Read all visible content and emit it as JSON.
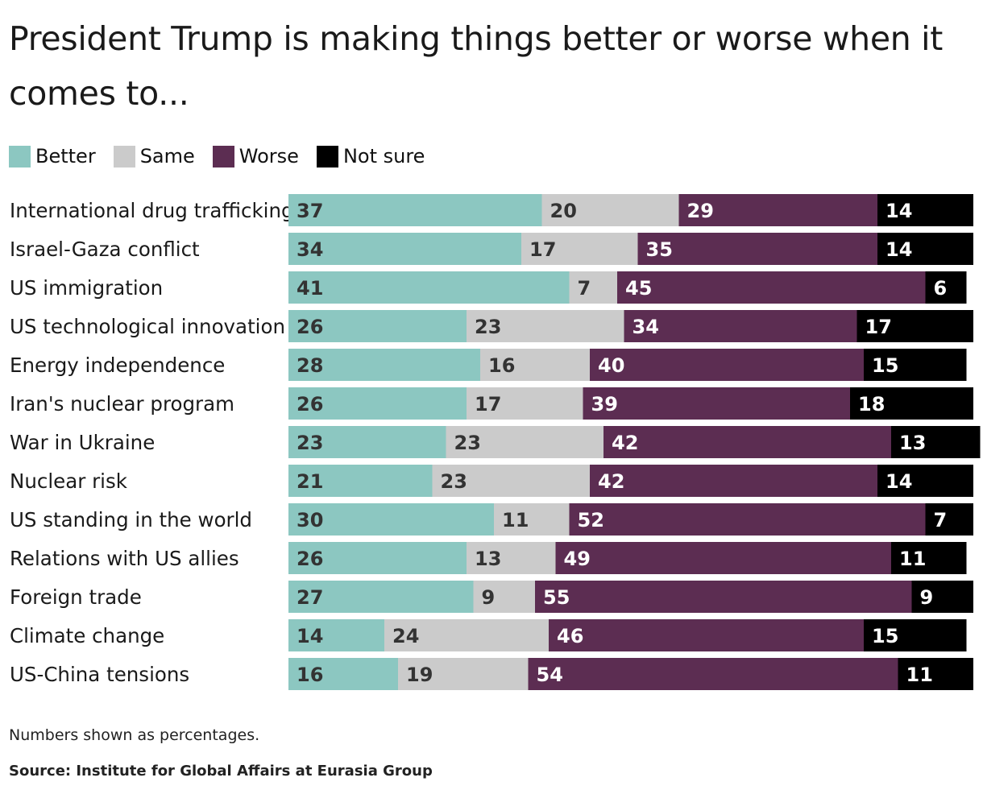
{
  "chart_data": {
    "type": "bar",
    "orientation": "horizontal",
    "stacked": true,
    "title": "President Trump is making things better or worse when it comes to...",
    "categories": [
      "International drug trafficking",
      "Israel-Gaza conflict",
      "US immigration",
      "US technological innovation",
      "Energy independence",
      "Iran's nuclear program",
      "War in Ukraine",
      "Nuclear risk",
      "US standing in the world",
      "Relations with US allies",
      "Foreign trade",
      "Climate change",
      "US-China tensions"
    ],
    "series": [
      {
        "name": "Better",
        "color": "#8cc7c1",
        "label_color": "#333333",
        "values": [
          37,
          34,
          41,
          26,
          28,
          26,
          23,
          21,
          30,
          26,
          27,
          14,
          16
        ]
      },
      {
        "name": "Same",
        "color": "#cbcbcb",
        "label_color": "#333333",
        "values": [
          20,
          17,
          7,
          23,
          16,
          17,
          23,
          23,
          11,
          13,
          9,
          24,
          19
        ]
      },
      {
        "name": "Worse",
        "color": "#5c2d52",
        "label_color": "#ffffff",
        "values": [
          29,
          35,
          45,
          34,
          40,
          39,
          42,
          42,
          52,
          49,
          55,
          46,
          54
        ]
      },
      {
        "name": "Not sure",
        "color": "#000000",
        "label_color": "#ffffff",
        "values": [
          14,
          14,
          6,
          17,
          15,
          18,
          13,
          14,
          7,
          11,
          9,
          15,
          11
        ]
      }
    ],
    "xlim": [
      0,
      100
    ],
    "grid": false,
    "legend": "top-left",
    "note": "Numbers shown as percentages.",
    "source": "Source: Institute for Global Affairs at Eurasia Group"
  }
}
